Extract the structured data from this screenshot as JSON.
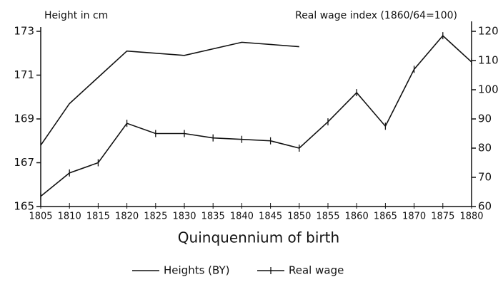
{
  "chart_data": {
    "type": "line",
    "y_label": "Height in cm",
    "y2_label": "Real wage index (1860/64=100)",
    "x_label": "Quinquennium of birth",
    "xlim": [
      1805,
      1880
    ],
    "xticks": [
      1805,
      1810,
      1815,
      1820,
      1825,
      1830,
      1835,
      1840,
      1845,
      1850,
      1855,
      1860,
      1865,
      1870,
      1875,
      1880
    ],
    "ylim": [
      165,
      173
    ],
    "yticks": [
      165,
      167,
      169,
      171,
      173
    ],
    "y2lim": [
      60,
      120
    ],
    "y2ticks": [
      60,
      70,
      80,
      90,
      100,
      110,
      120
    ],
    "legend": "bottom",
    "series": [
      {
        "name": "Heights (BY)",
        "color": "#111111",
        "axis": "y",
        "x": [
          1805,
          1810,
          1820,
          1830,
          1840,
          1850
        ],
        "values": [
          167.8,
          169.7,
          172.1,
          171.9,
          172.5,
          172.3
        ]
      },
      {
        "name": "Real wage",
        "color": "#111111",
        "axis": "y2",
        "x": [
          1805,
          1810,
          1815,
          1820,
          1825,
          1830,
          1835,
          1840,
          1845,
          1850,
          1855,
          1860,
          1865,
          1870,
          1875,
          1880
        ],
        "values": [
          63.5,
          71.5,
          75,
          88.5,
          85,
          85,
          83.5,
          83,
          82.5,
          80,
          89,
          99,
          87.5,
          107,
          118.5,
          109.5
        ]
      }
    ]
  }
}
